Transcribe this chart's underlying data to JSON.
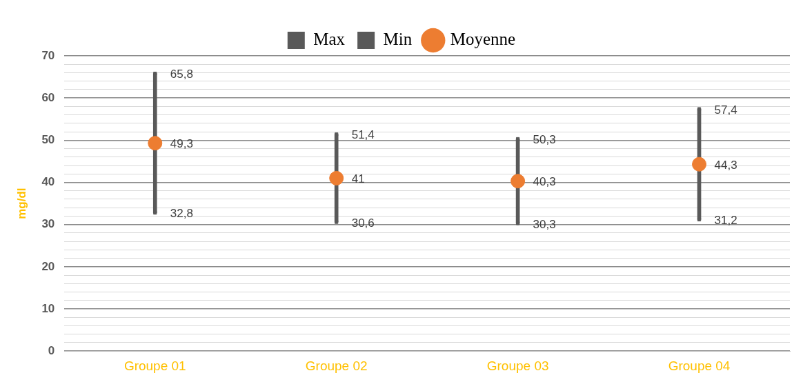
{
  "chart_data": {
    "type": "scatter",
    "ylabel": "mg/dl",
    "categories": [
      "Groupe 01",
      "Groupe 02",
      "Groupe 03",
      "Groupe 04"
    ],
    "series": [
      {
        "type": "bar",
        "color": "#595959",
        "base": [
          32.8,
          30.6,
          30.3,
          31.2
        ],
        "values": [
          33,
          20.8,
          20,
          26.2
        ]
      },
      {
        "name": "Max",
        "marker": "square",
        "color": "#595959",
        "values": [
          65.8,
          51.4,
          50.3,
          57.4
        ],
        "value_labels": [
          "65,8",
          "51,4",
          "50,3",
          "57,4"
        ]
      },
      {
        "name": "Min",
        "marker": "square",
        "color": "#595959",
        "values": [
          32.8,
          30.6,
          30.3,
          31.2
        ],
        "value_labels": [
          "32,8",
          "30,6",
          "30,3",
          "31,2"
        ]
      },
      {
        "name": "Moyenne",
        "marker": "circle",
        "color": "#ed7d31",
        "values": [
          49.3,
          41,
          40.3,
          44.3
        ],
        "value_labels": [
          "49,3",
          "41",
          "40,3",
          "44,3"
        ]
      }
    ],
    "ylim": [
      0,
      70
    ],
    "yticks": [
      0,
      {
        "value": 2,
        "label": null
      },
      {
        "value": 4,
        "label": null
      },
      {
        "value": 6,
        "label": null
      },
      {
        "value": 8,
        "label": null
      },
      10,
      {
        "value": 12,
        "label": null
      },
      {
        "value": 14,
        "label": null
      },
      {
        "value": 16,
        "label": null
      },
      {
        "value": 18,
        "label": null
      },
      20,
      {
        "value": 22,
        "label": null
      },
      {
        "value": 24,
        "label": null
      },
      {
        "value": 26,
        "label": null
      },
      {
        "value": 28,
        "label": null
      },
      30,
      {
        "value": 32,
        "label": null
      },
      {
        "value": 34,
        "label": null
      },
      {
        "value": 36,
        "label": null
      },
      {
        "value": 38,
        "label": null
      },
      40,
      {
        "value": 42,
        "label": null
      },
      {
        "value": 44,
        "label": null
      },
      {
        "value": 46,
        "label": null
      },
      {
        "value": 48,
        "label": null
      },
      50,
      {
        "value": 52,
        "label": null
      },
      {
        "value": 54,
        "label": null
      },
      {
        "value": 56,
        "label": null
      },
      {
        "value": 58,
        "label": null
      },
      60,
      {
        "value": 62,
        "label": null
      },
      {
        "value": 64,
        "label": null
      },
      {
        "value": 66,
        "label": null
      },
      {
        "value": 68,
        "label": null
      },
      70
    ],
    "grid": "y",
    "legend": "top"
  }
}
